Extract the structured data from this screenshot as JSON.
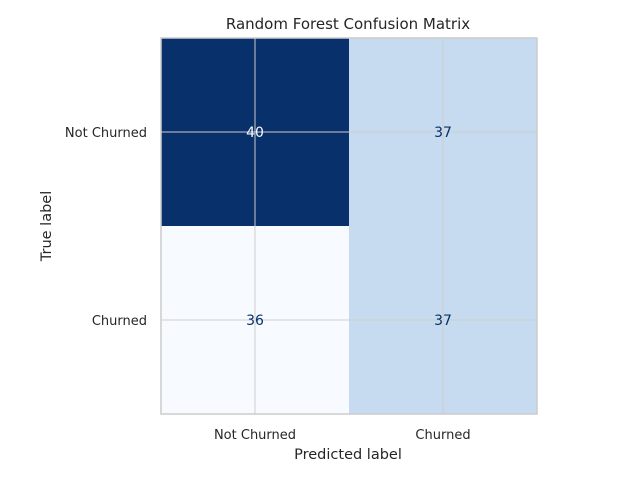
{
  "chart_data": {
    "type": "heatmap",
    "title": "Random Forest Confusion Matrix",
    "xlabel": "Predicted label",
    "ylabel": "True label",
    "x_categories": [
      "Not Churned",
      "Churned"
    ],
    "y_categories": [
      "Not Churned",
      "Churned"
    ],
    "values": [
      [
        40,
        37
      ],
      [
        36,
        37
      ]
    ],
    "colormap": "Blues",
    "colors": {
      "max_cell": "#08306b",
      "mid_cell": "#c6dbef",
      "min_cell": "#f7fbff",
      "text_on_dark": "#f7fbff",
      "text_on_light": "#08306b",
      "grid": "#cccccc",
      "spine": "#cccccc"
    },
    "grid": true,
    "colorbar": false
  }
}
